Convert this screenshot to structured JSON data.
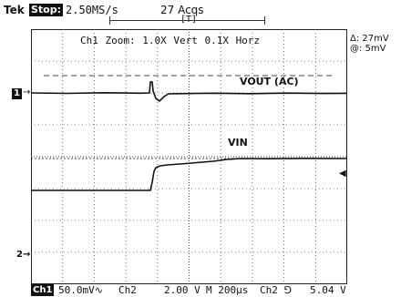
{
  "header": {
    "brand": "Tek",
    "run_state": "Stop:",
    "sample_rate": "2.50MS/s",
    "acquisitions": "27 Acqs",
    "trigger_status": "[T]"
  },
  "display": {
    "zoom_info": "Ch1 Zoom:   1.0X Vert   0.1X Horz",
    "cursor_delta": "Δ: 27mV",
    "cursor_at": "@: 5mV",
    "trace_vout_label": "VOUT (AC)",
    "trace_vin_label": "VIN",
    "ch1_marker": "1",
    "ch2_marker": "2",
    "ch1_arrow": "→",
    "ch2_arrow": "→",
    "trigger_level_arrow": "◀"
  },
  "footer": {
    "ch1_badge": "Ch1",
    "ch1_scale": "50.0mV∿",
    "ch2_label": "Ch2",
    "ch2_scale": "2.00 V",
    "timebase": "M 200µs",
    "trigger_source": "Ch2 ⅁",
    "trigger_level": "5.04 V"
  },
  "colors": {
    "trace": "#111111",
    "grid": "#555555",
    "background": "#ffffff"
  }
}
